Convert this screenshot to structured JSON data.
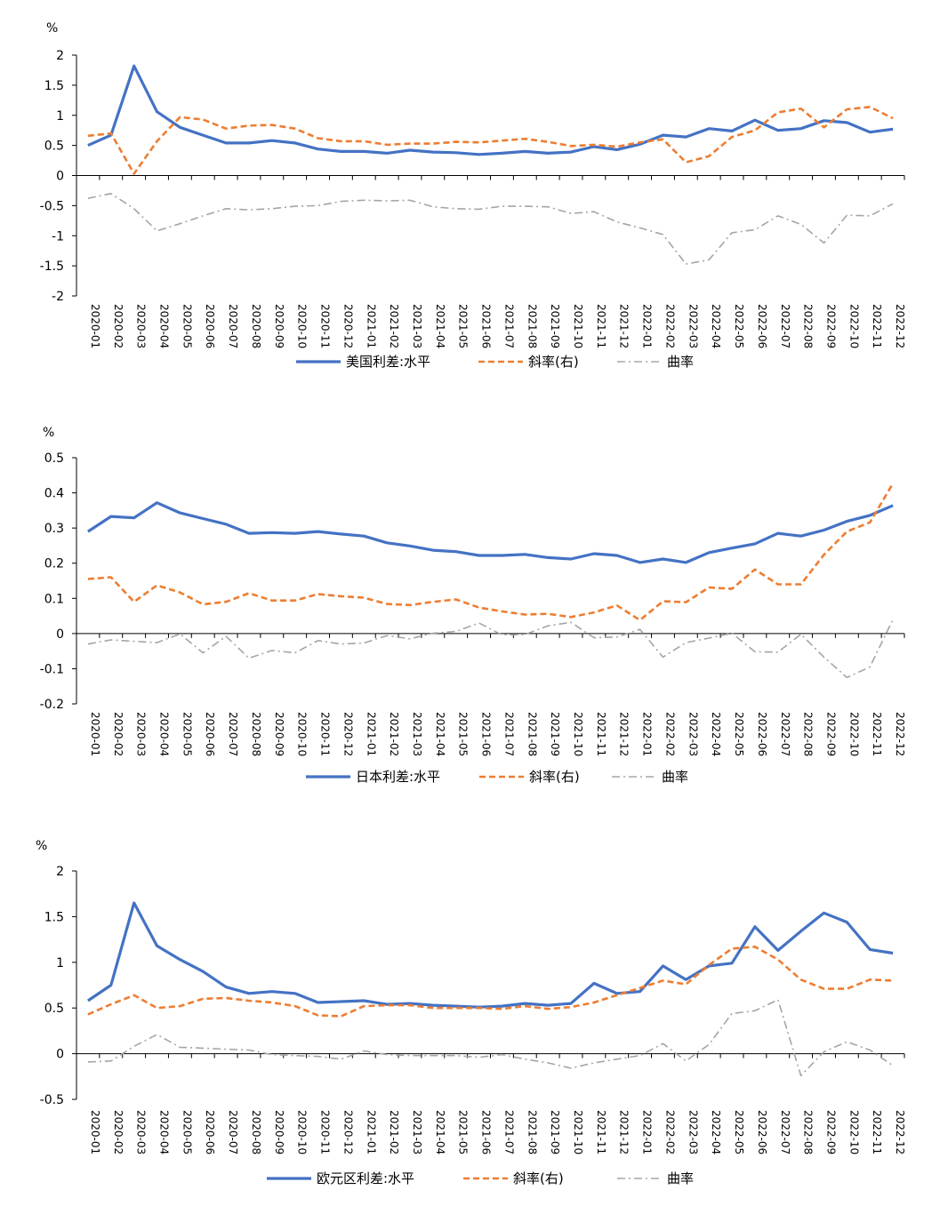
{
  "months": [
    "2020-01",
    "2020-02",
    "2020-03",
    "2020-04",
    "2020-05",
    "2020-06",
    "2020-07",
    "2020-08",
    "2020-09",
    "2020-10",
    "2020-11",
    "2020-12",
    "2021-01",
    "2021-02",
    "2021-03",
    "2021-04",
    "2021-05",
    "2021-06",
    "2021-07",
    "2021-08",
    "2021-09",
    "2021-10",
    "2021-11",
    "2021-12",
    "2022-01",
    "2022-02",
    "2022-03",
    "2022-04",
    "2022-05",
    "2022-06",
    "2022-07",
    "2022-08",
    "2022-09",
    "2022-10",
    "2022-11",
    "2022-12"
  ],
  "chart_data": [
    {
      "type": "line",
      "unit_label": "%",
      "ylim": [
        -2,
        2
      ],
      "yticks": [
        2,
        1.5,
        1,
        0.5,
        0,
        -0.5,
        -1,
        -1.5,
        -2
      ],
      "series": [
        {
          "name": "美国利差:水平",
          "color": "#4472C4",
          "style": "solid",
          "values": [
            0.5,
            0.67,
            1.82,
            1.06,
            0.8,
            0.67,
            0.54,
            0.54,
            0.58,
            0.54,
            0.44,
            0.4,
            0.4,
            0.37,
            0.42,
            0.39,
            0.38,
            0.35,
            0.37,
            0.4,
            0.37,
            0.39,
            0.48,
            0.43,
            0.52,
            0.67,
            0.64,
            0.78,
            0.74,
            0.92,
            0.75,
            0.78,
            0.91,
            0.88,
            0.72,
            0.77
          ]
        },
        {
          "name": "斜率(右)",
          "color": "#ED7D31",
          "style": "dashed",
          "values": [
            0.66,
            0.7,
            0.03,
            0.57,
            0.97,
            0.93,
            0.78,
            0.83,
            0.84,
            0.78,
            0.62,
            0.57,
            0.57,
            0.51,
            0.53,
            0.53,
            0.56,
            0.55,
            0.58,
            0.61,
            0.56,
            0.49,
            0.51,
            0.48,
            0.55,
            0.6,
            0.22,
            0.32,
            0.64,
            0.75,
            1.05,
            1.11,
            0.8,
            1.1,
            1.14,
            0.95
          ]
        },
        {
          "name": "曲率",
          "color": "#A5A5A5",
          "style": "dashdot",
          "values": [
            -0.38,
            -0.3,
            -0.55,
            -0.92,
            -0.8,
            -0.67,
            -0.55,
            -0.57,
            -0.55,
            -0.51,
            -0.5,
            -0.43,
            -0.41,
            -0.42,
            -0.41,
            -0.52,
            -0.55,
            -0.56,
            -0.51,
            -0.51,
            -0.52,
            -0.63,
            -0.6,
            -0.77,
            -0.87,
            -0.98,
            -1.47,
            -1.4,
            -0.95,
            -0.9,
            -0.67,
            -0.81,
            -1.12,
            -0.66,
            -0.67,
            -0.47
          ]
        }
      ]
    },
    {
      "type": "line",
      "unit_label": "%",
      "ylim": [
        -0.2,
        0.5
      ],
      "yticks": [
        0.5,
        0.4,
        0.3,
        0.2,
        0.1,
        0,
        -0.1,
        -0.2
      ],
      "series": [
        {
          "name": "日本利差:水平",
          "color": "#4472C4",
          "style": "solid",
          "values": [
            0.29,
            0.333,
            0.329,
            0.372,
            0.343,
            0.327,
            0.311,
            0.285,
            0.287,
            0.285,
            0.29,
            0.283,
            0.277,
            0.258,
            0.249,
            0.237,
            0.233,
            0.222,
            0.222,
            0.225,
            0.216,
            0.212,
            0.227,
            0.222,
            0.202,
            0.212,
            0.202,
            0.23,
            0.243,
            0.255,
            0.285,
            0.277,
            0.294,
            0.319,
            0.336,
            0.364
          ]
        },
        {
          "name": "斜率(右)",
          "color": "#ED7D31",
          "style": "dashed",
          "values": [
            0.155,
            0.16,
            0.09,
            0.137,
            0.117,
            0.083,
            0.09,
            0.115,
            0.094,
            0.094,
            0.112,
            0.106,
            0.102,
            0.084,
            0.081,
            0.09,
            0.097,
            0.074,
            0.063,
            0.054,
            0.056,
            0.047,
            0.06,
            0.08,
            0.038,
            0.092,
            0.089,
            0.131,
            0.127,
            0.182,
            0.14,
            0.14,
            0.224,
            0.29,
            0.316,
            0.427
          ]
        },
        {
          "name": "曲率",
          "color": "#A5A5A5",
          "style": "dashdot",
          "values": [
            -0.03,
            -0.018,
            -0.022,
            -0.026,
            -0.001,
            -0.055,
            -0.008,
            -0.07,
            -0.048,
            -0.055,
            -0.02,
            -0.03,
            -0.027,
            -0.006,
            -0.015,
            0.001,
            0.006,
            0.03,
            -0.004,
            -0.003,
            0.022,
            0.032,
            -0.012,
            -0.01,
            0.012,
            -0.067,
            -0.026,
            -0.013,
            0.001,
            -0.052,
            -0.053,
            -0.002,
            -0.067,
            -0.125,
            -0.095,
            0.04
          ]
        }
      ]
    },
    {
      "type": "line",
      "unit_label": "%",
      "ylim": [
        -0.5,
        2
      ],
      "yticks": [
        2,
        1.5,
        1,
        0.5,
        0,
        -0.5
      ],
      "series": [
        {
          "name": "欧元区利差:水平",
          "color": "#4472C4",
          "style": "solid",
          "values": [
            0.58,
            0.75,
            1.65,
            1.18,
            1.03,
            0.9,
            0.73,
            0.66,
            0.68,
            0.66,
            0.56,
            0.57,
            0.58,
            0.54,
            0.55,
            0.53,
            0.52,
            0.51,
            0.52,
            0.55,
            0.53,
            0.55,
            0.77,
            0.66,
            0.68,
            0.96,
            0.81,
            0.96,
            0.99,
            1.39,
            1.13,
            1.34,
            1.54,
            1.44,
            1.14,
            1.1
          ]
        },
        {
          "name": "斜率(右)",
          "color": "#ED7D31",
          "style": "dashed",
          "values": [
            0.43,
            0.54,
            0.64,
            0.5,
            0.52,
            0.6,
            0.61,
            0.58,
            0.56,
            0.52,
            0.42,
            0.41,
            0.52,
            0.53,
            0.53,
            0.5,
            0.5,
            0.5,
            0.49,
            0.52,
            0.49,
            0.51,
            0.56,
            0.64,
            0.72,
            0.8,
            0.76,
            0.97,
            1.15,
            1.17,
            1.03,
            0.81,
            0.71,
            0.71,
            0.81,
            0.8
          ]
        },
        {
          "name": "曲率",
          "color": "#A5A5A5",
          "style": "dashdot",
          "values": [
            -0.09,
            -0.08,
            0.08,
            0.21,
            0.07,
            0.06,
            0.05,
            0.04,
            -0.01,
            -0.02,
            -0.03,
            -0.06,
            0.03,
            -0.01,
            -0.02,
            -0.02,
            -0.02,
            -0.04,
            -0.01,
            -0.06,
            -0.1,
            -0.16,
            -0.1,
            -0.06,
            -0.02,
            0.11,
            -0.08,
            0.1,
            0.44,
            0.47,
            0.59,
            -0.24,
            0.02,
            0.13,
            0.04,
            -0.13
          ]
        }
      ]
    }
  ]
}
